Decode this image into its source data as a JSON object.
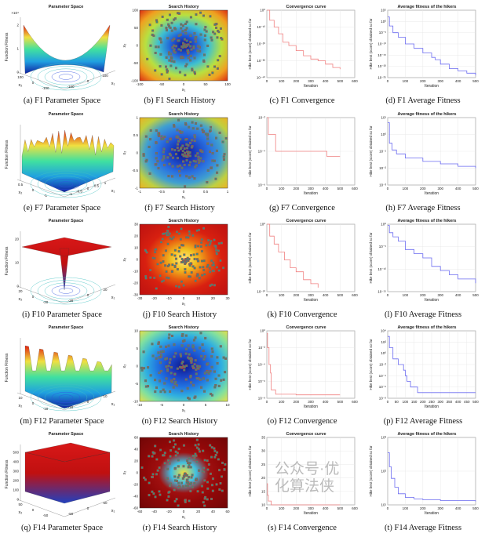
{
  "colors": {
    "convergence_line": "#f08080",
    "average_line": "#6a6af0",
    "marker_fill": "#3a8c7a",
    "marker_edge": "#c04040"
  },
  "panels": [
    {
      "caption": "(a) F1 Parameter Space",
      "title": "Parameter Space",
      "kind": "surface",
      "variant": "bowl",
      "zlabel": "Function Fitness",
      "xlabel": "x₁",
      "ylabel": "x₂",
      "zticks": [
        "0",
        "1",
        "2"
      ],
      "zscale": "×10⁴",
      "xticks": [
        "-100",
        "0",
        "100"
      ],
      "yticks": [
        "-100",
        "0",
        "100"
      ]
    },
    {
      "caption": "(b) F1 Search History",
      "title": "Search History",
      "kind": "history",
      "bg": [
        "#0a1a8c",
        "#1f5fd8",
        "#3fc0d0",
        "#b8e040",
        "#f0a020",
        "#d82010"
      ],
      "xlabel": "x₁",
      "ylabel": "x₂",
      "xticks": [
        "-100",
        "-50",
        "0",
        "50",
        "100"
      ],
      "yticks": [
        "-100",
        "-50",
        "0",
        "50",
        "100"
      ]
    },
    {
      "caption": "(c) F1 Convergence",
      "title": "Convergence curve",
      "kind": "curve",
      "scale": "log",
      "xlabel": "Iteration",
      "ylabel": "Hike best (score) obtained so far",
      "xlim": [
        0,
        600
      ],
      "xticks": [
        "0",
        "100",
        "200",
        "300",
        "400",
        "500",
        "600"
      ],
      "ylim": [
        1e-40,
        1
      ],
      "yticks": [
        "10⁰",
        "10⁻¹⁰",
        "10⁻²⁰",
        "10⁻³⁰",
        "10⁻⁴⁰"
      ],
      "line": "convergence_line",
      "x": [
        0,
        20,
        50,
        80,
        110,
        150,
        200,
        250,
        300,
        350,
        400,
        450,
        500
      ],
      "y": [
        1,
        1e-06,
        1e-10,
        1e-14,
        1e-19,
        1e-21,
        1e-24,
        1e-27,
        1e-29,
        1e-30,
        1e-32,
        1e-34,
        1e-35
      ]
    },
    {
      "caption": "(d) F1 Average Fitness",
      "title": "Average fitness of the hikers",
      "kind": "curve",
      "scale": "log",
      "xlabel": "Iteration",
      "ylabel": "Hike best (score) obtained so far",
      "xlim": [
        0,
        500
      ],
      "xticks": [
        "0",
        "100",
        "200",
        "300",
        "400",
        "500"
      ],
      "ylim": [
        1e-25,
        100000.0
      ],
      "yticks": [
        "10⁵",
        "10⁰",
        "10⁻⁵",
        "10⁻¹⁰",
        "10⁻¹⁵",
        "10⁻²⁰",
        "10⁻²⁵"
      ],
      "line": "average_line",
      "x": [
        0,
        10,
        30,
        60,
        100,
        150,
        200,
        250,
        270,
        300,
        350,
        400,
        450,
        500
      ],
      "y": [
        100.0,
        0.01,
        1e-05,
        1e-07,
        1e-10,
        1e-12,
        1e-14,
        1e-16,
        1e-17,
        1e-19,
        1e-21,
        1e-22,
        1e-23,
        1e-24
      ]
    },
    {
      "caption": "(e) F7 Parameter Space",
      "title": "Parameter Space",
      "kind": "surface",
      "variant": "spiky",
      "zlabel": "Function Fitness",
      "xlabel": "x₁",
      "ylabel": "x₂",
      "zticks": [],
      "zscale": "",
      "xticks": [
        "-1",
        "-0.5",
        "0",
        "0.5",
        "1"
      ],
      "yticks": [
        "-1",
        "0",
        "0.5"
      ]
    },
    {
      "caption": "(f) F7 Search History",
      "title": "Search History",
      "kind": "history",
      "bg": [
        "#0a1a8c",
        "#1a40c0",
        "#2a70e0",
        "#40a0d0",
        "#c0d040",
        "#f0b020"
      ],
      "xlabel": "x₁",
      "ylabel": "x₂",
      "xticks": [
        "-1",
        "-0.5",
        "0",
        "0.5",
        "1"
      ],
      "yticks": [
        "-1",
        "-0.5",
        "0",
        "0.5",
        "1"
      ]
    },
    {
      "caption": "(g) F7 Convergence",
      "title": "",
      "kind": "curve",
      "scale": "log",
      "xlabel": "Iteration",
      "ylabel": "Hike best (score) obtained so far",
      "xlim": [
        0,
        600
      ],
      "xticks": [
        "0",
        "100",
        "200",
        "300",
        "400",
        "500",
        "600"
      ],
      "ylim": [
        1e-06,
        0.01
      ],
      "yticks": [
        "10⁻²",
        "10⁻⁴",
        "10⁻⁶"
      ],
      "line": "convergence_line",
      "x": [
        0,
        10,
        25,
        60,
        100,
        180,
        300,
        400,
        410,
        500
      ],
      "y": [
        0.01,
        0.001,
        0.001,
        0.0001,
        0.0001,
        0.0001,
        0.0001,
        0.0001,
        5e-05,
        5e-05
      ]
    },
    {
      "caption": "(h) F7 Average Fitness",
      "title": "Average fitness of the hikers",
      "kind": "curve",
      "scale": "log",
      "xlabel": "Iteration",
      "ylabel": "Hike best (score) obtained so far",
      "xlim": [
        0,
        500
      ],
      "xticks": [
        "0",
        "100",
        "200",
        "300",
        "400",
        "500"
      ],
      "ylim": [
        0.001,
        10
      ],
      "yticks": [
        "10¹",
        "10⁰",
        "10⁻¹",
        "10⁻²",
        "10⁻³"
      ],
      "line": "average_line",
      "x": [
        0,
        10,
        25,
        50,
        100,
        200,
        300,
        400,
        500
      ],
      "y": [
        5,
        0.3,
        0.12,
        0.07,
        0.04,
        0.025,
        0.018,
        0.013,
        0.01
      ]
    },
    {
      "caption": "(i) F10 Parameter Space",
      "title": "Parameter Space",
      "kind": "surface",
      "variant": "funnel",
      "zlabel": "Function Fitness",
      "xlabel": "x₁",
      "ylabel": "x₂",
      "zticks": [
        "0",
        "10",
        "20"
      ],
      "zscale": "",
      "xticks": [
        "-20",
        "0",
        "20"
      ],
      "yticks": [
        "-20",
        "0",
        "20"
      ]
    },
    {
      "caption": "(j) F10 Search History",
      "title": "Search History",
      "kind": "history",
      "bg": [
        "#fff080",
        "#f0c020",
        "#e86010",
        "#d82010",
        "#c81810",
        "#c01010"
      ],
      "xlabel": "x₁",
      "ylabel": "x₂",
      "xticks": [
        "-30",
        "-20",
        "-10",
        "0",
        "10",
        "20",
        "30"
      ],
      "yticks": [
        "-30",
        "-20",
        "-10",
        "0",
        "10",
        "20",
        "30"
      ]
    },
    {
      "caption": "(k) F10 Convergence",
      "title": "Convergence curve",
      "kind": "curve",
      "scale": "log",
      "xlabel": "Iteration",
      "ylabel": "Hike best (score) obtained so far",
      "xlim": [
        0,
        600
      ],
      "xticks": [
        "0",
        "100",
        "200",
        "300",
        "400",
        "500",
        "600"
      ],
      "ylim": [
        1e-16,
        10
      ],
      "yticks": [
        "10⁰",
        "10⁻¹⁰"
      ],
      "line": "convergence_line",
      "x": [
        0,
        20,
        50,
        80,
        120,
        160,
        200,
        250,
        300,
        350
      ],
      "y": [
        10,
        0.01,
        0.0001,
        1e-06,
        1e-08,
        1e-10,
        1e-11,
        1e-13,
        1e-14,
        1e-15
      ]
    },
    {
      "caption": "(l) F10 Average Fitness",
      "title": "Average fitness of the hikers",
      "kind": "curve",
      "scale": "log",
      "xlabel": "Iteration",
      "ylabel": "Hike best (score) obtained so far",
      "xlim": [
        0,
        500
      ],
      "xticks": [
        "0",
        "100",
        "200",
        "300",
        "400",
        "500"
      ],
      "ylim": [
        1e-15,
        10
      ],
      "yticks": [
        "10⁰",
        "10⁻⁵",
        "10⁻¹⁰",
        "10⁻¹⁵"
      ],
      "line": "average_line",
      "x": [
        0,
        10,
        30,
        60,
        100,
        150,
        200,
        250,
        300,
        350,
        400,
        450,
        500
      ],
      "y": [
        5,
        0.1,
        0.01,
        0.001,
        1e-05,
        1e-06,
        1e-07,
        1e-09,
        1e-10,
        1e-11,
        1e-12,
        1e-12,
        1e-13
      ]
    },
    {
      "caption": "(m) F12 Parameter Space",
      "title": "Parameter Space",
      "kind": "surface",
      "variant": "waves",
      "zlabel": "Function Fitness",
      "xlabel": "x₁",
      "ylabel": "x₂",
      "zticks": [],
      "zscale": "",
      "xticks": [
        "-10",
        "0",
        "10"
      ],
      "yticks": [
        "-10",
        "0",
        "10"
      ]
    },
    {
      "caption": "(n) F12 Search History",
      "title": "Search History",
      "kind": "history",
      "bg": [
        "#0a1a8c",
        "#1a40c0",
        "#2070e0",
        "#30b0e0",
        "#80e0a0",
        "#f0e040"
      ],
      "xlabel": "x₁",
      "ylabel": "x₂",
      "xticks": [
        "-10",
        "-5",
        "0",
        "5",
        "10"
      ],
      "yticks": [
        "-10",
        "-5",
        "0",
        "5",
        "10"
      ]
    },
    {
      "caption": "(o) F12 Convergence",
      "title": "Convergence curve",
      "kind": "curve",
      "scale": "log",
      "xlabel": "Iteration",
      "ylabel": "Hike best (score) obtained so far",
      "xlim": [
        0,
        600
      ],
      "xticks": [
        "0",
        "100",
        "200",
        "300",
        "400",
        "500",
        "600"
      ],
      "ylim": [
        1e-08,
        1
      ],
      "yticks": [
        "10⁰",
        "10⁻²",
        "10⁻⁴",
        "10⁻⁶",
        "10⁻⁸"
      ],
      "line": "convergence_line",
      "x": [
        0,
        5,
        15,
        25,
        30,
        50,
        60,
        190,
        200,
        500
      ],
      "y": [
        0.5,
        0.01,
        0.0001,
        1e-05,
        1e-07,
        1e-07,
        3e-08,
        3e-08,
        2.5e-08,
        2.5e-08
      ]
    },
    {
      "caption": "(p) F12 Average Fitness",
      "title": "Average fitness of the hikers",
      "kind": "curve",
      "scale": "log",
      "xlabel": "Iteration",
      "ylabel": "Hike best (score) obtained so far",
      "xlim": [
        0,
        500
      ],
      "xticks": [
        "0",
        "50",
        "100",
        "150",
        "200",
        "250",
        "300",
        "350",
        "400",
        "450",
        "500"
      ],
      "ylim": [
        1e-08,
        10000.0
      ],
      "yticks": [
        "10⁴",
        "10²",
        "10⁰",
        "10⁻²",
        "10⁻⁴",
        "10⁻⁶",
        "10⁻⁸"
      ],
      "line": "average_line",
      "x": [
        0,
        10,
        30,
        60,
        90,
        100,
        110,
        130,
        150,
        170,
        200,
        500
      ],
      "y": [
        1000.0,
        10.0,
        0.1,
        0.01,
        0.001,
        0.0001,
        1e-05,
        1e-06,
        1e-06,
        1e-07,
        1e-07,
        1e-07
      ]
    },
    {
      "caption": "(q) F14 Parameter Space",
      "title": "Parameter Space",
      "kind": "surface",
      "variant": "block",
      "zlabel": "Function Fitness",
      "xlabel": "x₁",
      "ylabel": "x₂",
      "zticks": [
        "0",
        "100",
        "200",
        "300",
        "400",
        "500"
      ],
      "zscale": "",
      "xticks": [
        "-50",
        "0",
        "50"
      ],
      "yticks": [
        "-50",
        "0",
        "50"
      ]
    },
    {
      "caption": "(r) F14 Search History",
      "title": "Search History",
      "kind": "history",
      "bg": [
        "#f0e040",
        "#40c0e0",
        "#a01010",
        "#900808",
        "#800808",
        "#700505"
      ],
      "xlabel": "x₁",
      "ylabel": "x₂",
      "xticks": [
        "-60",
        "-40",
        "-20",
        "0",
        "20",
        "40",
        "60"
      ],
      "yticks": [
        "-60",
        "-40",
        "-20",
        "0",
        "20",
        "40",
        "60"
      ]
    },
    {
      "caption": "(s) F14 Convergence",
      "title": "Convergence curve",
      "kind": "curve",
      "scale": "linear",
      "xlabel": "Iteration",
      "ylabel": "Hike best (score) obtained so far",
      "xlim": [
        0,
        600
      ],
      "xticks": [
        "0",
        "100",
        "200",
        "300",
        "400",
        "500",
        "600"
      ],
      "ylim": [
        1,
        36
      ],
      "yticks": [
        "35",
        "30",
        "25",
        "20",
        "15",
        "10"
      ],
      "line": "convergence_line",
      "x": [
        0,
        5,
        10,
        30,
        500
      ],
      "y": [
        12,
        6,
        3,
        1,
        1
      ]
    },
    {
      "caption": "(t) F14 Average Fitness",
      "title": "Average fitness of the hikers",
      "kind": "curve",
      "scale": "log",
      "xlabel": "Iteration",
      "ylabel": "Hike best (score) obtained so far",
      "xlim": [
        0,
        500
      ],
      "xticks": [
        "0",
        "100",
        "200",
        "300",
        "400",
        "500"
      ],
      "ylim": [
        5,
        1000
      ],
      "yticks": [
        "10³",
        "10²",
        "10¹"
      ],
      "line": "average_line",
      "x": [
        0,
        10,
        20,
        40,
        60,
        100,
        150,
        200,
        300,
        500
      ],
      "y": [
        300,
        100,
        40,
        20,
        12,
        9,
        8,
        7.5,
        7,
        6.5
      ]
    }
  ],
  "watermark": "公众号·优化算法侠"
}
